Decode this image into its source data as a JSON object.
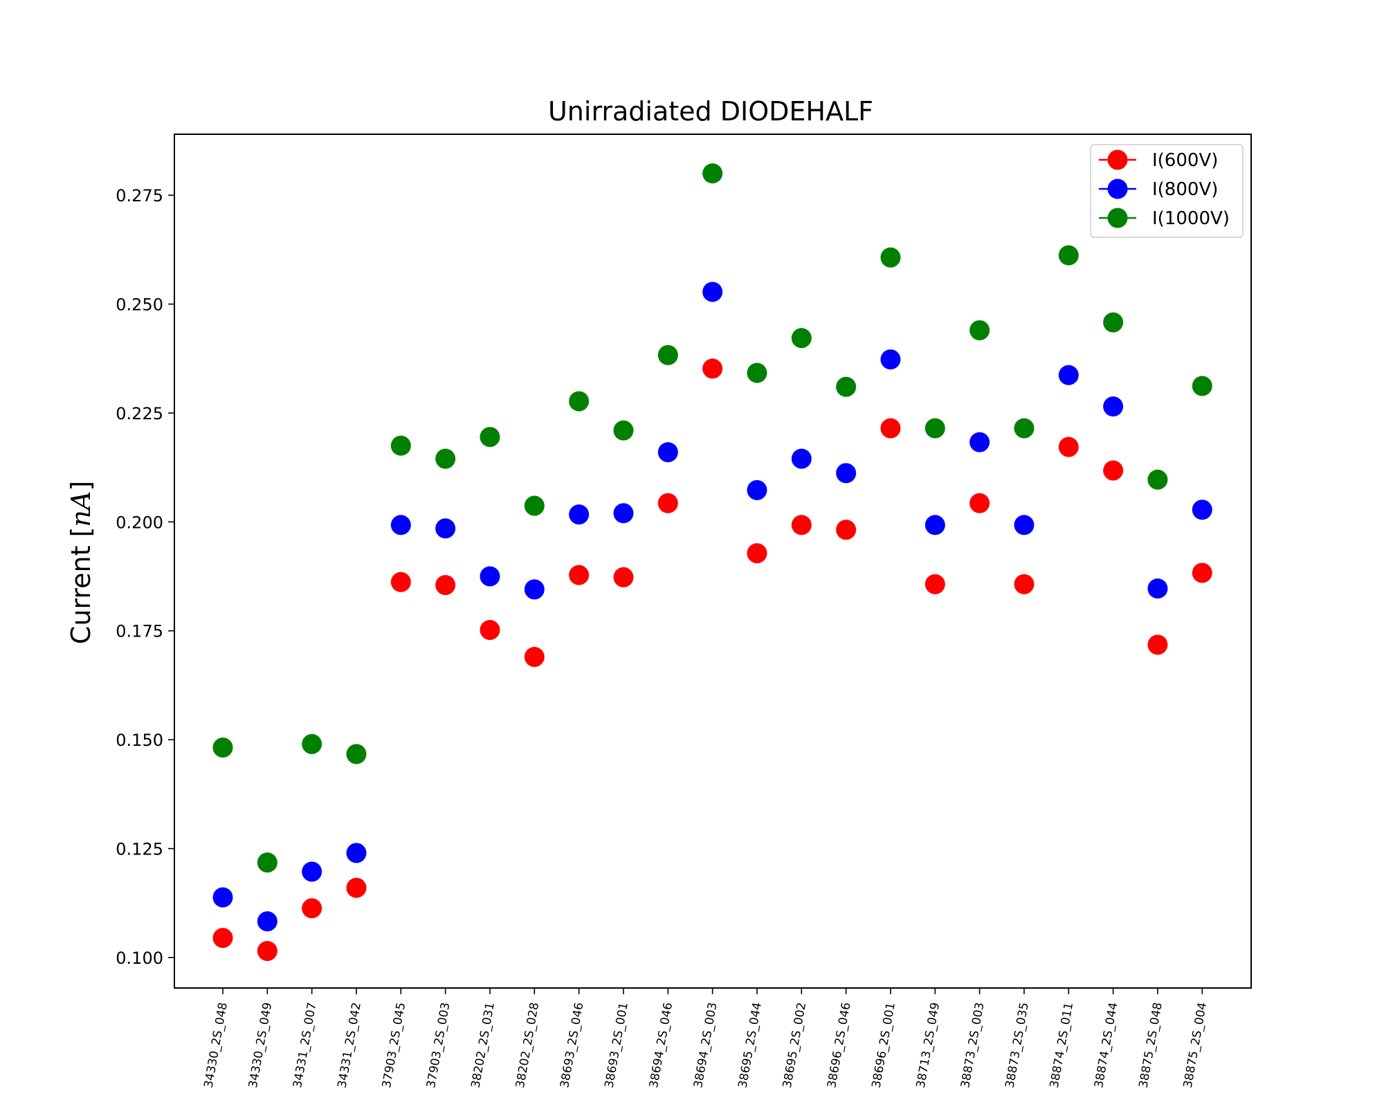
{
  "chart_data": {
    "type": "scatter",
    "title": "Unirradiated DIODEHALF",
    "xlabel": "",
    "ylabel_main": "Current [",
    "ylabel_unit": "nA",
    "ylabel_close": "]",
    "ylim": [
      0.093,
      0.289
    ],
    "yticks": [
      0.1,
      0.125,
      0.15,
      0.175,
      0.2,
      0.225,
      0.25,
      0.275
    ],
    "ytick_labels": [
      "0.100",
      "0.125",
      "0.150",
      "0.175",
      "0.200",
      "0.225",
      "0.250",
      "0.275"
    ],
    "legend_position": "top-right",
    "grid": false,
    "categories": [
      "34330_2S_048",
      "34330_2S_049",
      "34331_2S_007",
      "34331_2S_042",
      "37903_2S_045",
      "37903_2S_003",
      "38202_2S_031",
      "38202_2S_028",
      "38693_2S_046",
      "38693_2S_001",
      "38694_2S_046",
      "38694_2S_003",
      "38695_2S_044",
      "38695_2S_002",
      "38696_2S_046",
      "38696_2S_001",
      "38713_2S_049",
      "38873_2S_003",
      "38873_2S_035",
      "38874_2S_011",
      "38874_2S_044",
      "38875_2S_048",
      "38875_2S_004"
    ],
    "series": [
      {
        "name": "I(600V)",
        "color": "#ff0000",
        "values": [
          0.1045,
          0.1015,
          0.1113,
          0.116,
          0.1862,
          0.1855,
          0.1752,
          0.169,
          0.1878,
          0.1873,
          0.2043,
          0.2352,
          0.1928,
          0.1993,
          0.1982,
          0.2215,
          0.1857,
          0.2043,
          0.1857,
          0.2172,
          0.2118,
          0.1718,
          0.1883
        ]
      },
      {
        "name": "I(800V)",
        "color": "#0000ff",
        "values": [
          0.1138,
          0.1083,
          0.1197,
          0.124,
          0.1993,
          0.1985,
          0.1875,
          0.1845,
          0.2017,
          0.202,
          0.216,
          0.2528,
          0.2073,
          0.2145,
          0.2112,
          0.2373,
          0.1993,
          0.2183,
          0.1993,
          0.2337,
          0.2265,
          0.1847,
          0.2028
        ]
      },
      {
        "name": "I(1000V)",
        "color": "#008000",
        "values": [
          0.1482,
          0.1218,
          0.149,
          0.1467,
          0.2175,
          0.2145,
          0.2195,
          0.2037,
          0.2277,
          0.221,
          0.2383,
          0.28,
          0.2342,
          0.2422,
          0.231,
          0.2607,
          0.2215,
          0.244,
          0.2215,
          0.2612,
          0.2458,
          0.2097,
          0.2312
        ]
      }
    ]
  }
}
